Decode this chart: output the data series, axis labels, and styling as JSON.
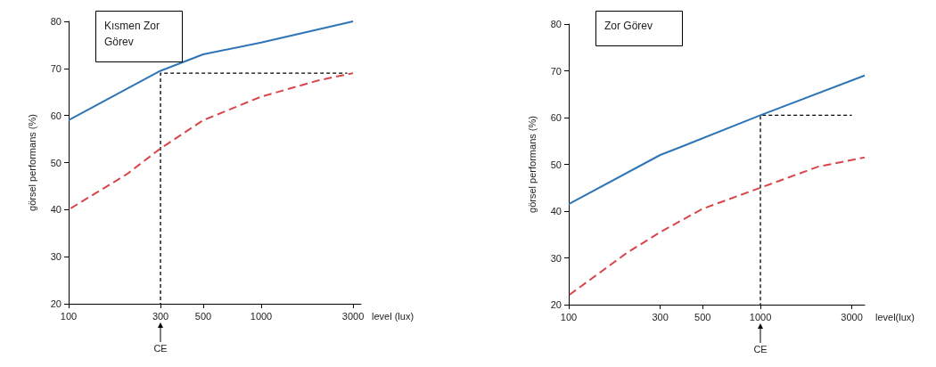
{
  "chart_data": [
    {
      "type": "line",
      "title": "Kısmen Zor Görev",
      "xlabel": "level (lux)",
      "ylabel": "görsel performans (%)",
      "log": "x",
      "xlim": [
        100,
        3300
      ],
      "xticks": [
        100,
        300,
        500,
        1000,
        3000
      ],
      "ylim": [
        20,
        80
      ],
      "yticks": [
        20,
        30,
        40,
        50,
        60,
        70,
        80
      ],
      "grid": false,
      "marker": "none",
      "annotations": [
        "CE"
      ],
      "series": [
        {
          "color": "#2e75b6",
          "line_style": "solid",
          "x": [
            100,
            300,
            500,
            1000,
            3000
          ],
          "values": [
            59,
            69.5,
            73,
            75.5,
            80
          ]
        },
        {
          "color": "#d9464a",
          "line_style": "dashed",
          "x": [
            100,
            200,
            300,
            500,
            1000,
            2000,
            3000
          ],
          "values": [
            40,
            47.5,
            53,
            59,
            64,
            67.5,
            69
          ]
        },
        {
          "color": "#000000",
          "line_style": "dashed",
          "x": [
            300,
            300,
            2800
          ],
          "values": [
            20,
            69,
            69
          ]
        }
      ]
    },
    {
      "type": "line",
      "title": "Zor Görev",
      "xlabel": "level(lux)",
      "ylabel": "görsel performans (%)",
      "log": "x",
      "xlim": [
        100,
        3500
      ],
      "xticks": [
        100,
        300,
        500,
        1000,
        3000
      ],
      "ylim": [
        20,
        80
      ],
      "yticks": [
        20,
        30,
        40,
        50,
        60,
        70,
        80
      ],
      "grid": false,
      "marker": "none",
      "annotations": [
        "CE"
      ],
      "series": [
        {
          "color": "#2e75b6",
          "line_style": "solid",
          "x": [
            100,
            300,
            400,
            1000,
            3500
          ],
          "values": [
            41.5,
            52,
            54,
            60.5,
            69
          ]
        },
        {
          "color": "#d9464a",
          "line_style": "dashed",
          "x": [
            100,
            200,
            300,
            500,
            1000,
            2000,
            3500
          ],
          "values": [
            22,
            31,
            35.5,
            40.5,
            45,
            49.5,
            51.5
          ]
        },
        {
          "color": "#000000",
          "line_style": "dashed",
          "x": [
            1000,
            1000,
            3000
          ],
          "values": [
            20,
            60.5,
            60.5
          ]
        }
      ]
    }
  ]
}
